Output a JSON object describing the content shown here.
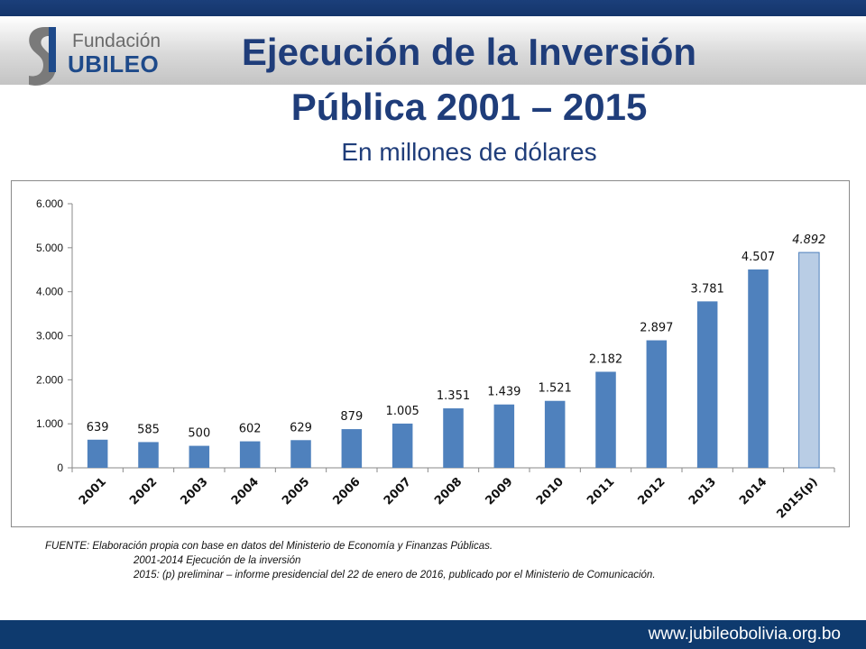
{
  "header": {
    "logo_small": "Fundación",
    "logo_big": "UBILEO",
    "title_line1": "Ejecución de la Inversión",
    "title_line2": "Pública 2001 – 2015",
    "subtitle": "En millones de dólares"
  },
  "chart_data": {
    "type": "bar",
    "title": "",
    "xlabel": "",
    "ylabel": "",
    "ylim": [
      0,
      6000
    ],
    "yticks": [
      0,
      1000,
      2000,
      3000,
      4000,
      5000,
      6000
    ],
    "ytick_labels": [
      "0",
      "1.000",
      "2.000",
      "3.000",
      "4.000",
      "5.000",
      "6.000"
    ],
    "grid": false,
    "categories": [
      "2001",
      "2002",
      "2003",
      "2004",
      "2005",
      "2006",
      "2007",
      "2008",
      "2009",
      "2010",
      "2011",
      "2012",
      "2013",
      "2014",
      "2015(p)"
    ],
    "values": [
      639,
      585,
      500,
      602,
      629,
      879,
      1005,
      1351,
      1439,
      1521,
      2182,
      2897,
      3781,
      4507,
      4892
    ],
    "data_labels": [
      "639",
      "585",
      "500",
      "602",
      "629",
      "879",
      "1.005",
      "1.351",
      "1.439",
      "1.521",
      "2.182",
      "2.897",
      "3.781",
      "4.507",
      "4.892"
    ],
    "colors": {
      "bar": "#4f81bd",
      "bar_highlight": "#b9cde5"
    },
    "highlight_index": 14
  },
  "source": {
    "line1": "FUENTE: Elaboración propia con base en datos del Ministerio de Economía y Finanzas Públicas.",
    "line2": "2001-2014 Ejecución de la inversión",
    "line3": "2015: (p) preliminar – informe presidencial del 22 de enero de 2016, publicado por el Ministerio de Comunicación."
  },
  "footer": {
    "url": "www.jubileobolivia.org.bo"
  }
}
